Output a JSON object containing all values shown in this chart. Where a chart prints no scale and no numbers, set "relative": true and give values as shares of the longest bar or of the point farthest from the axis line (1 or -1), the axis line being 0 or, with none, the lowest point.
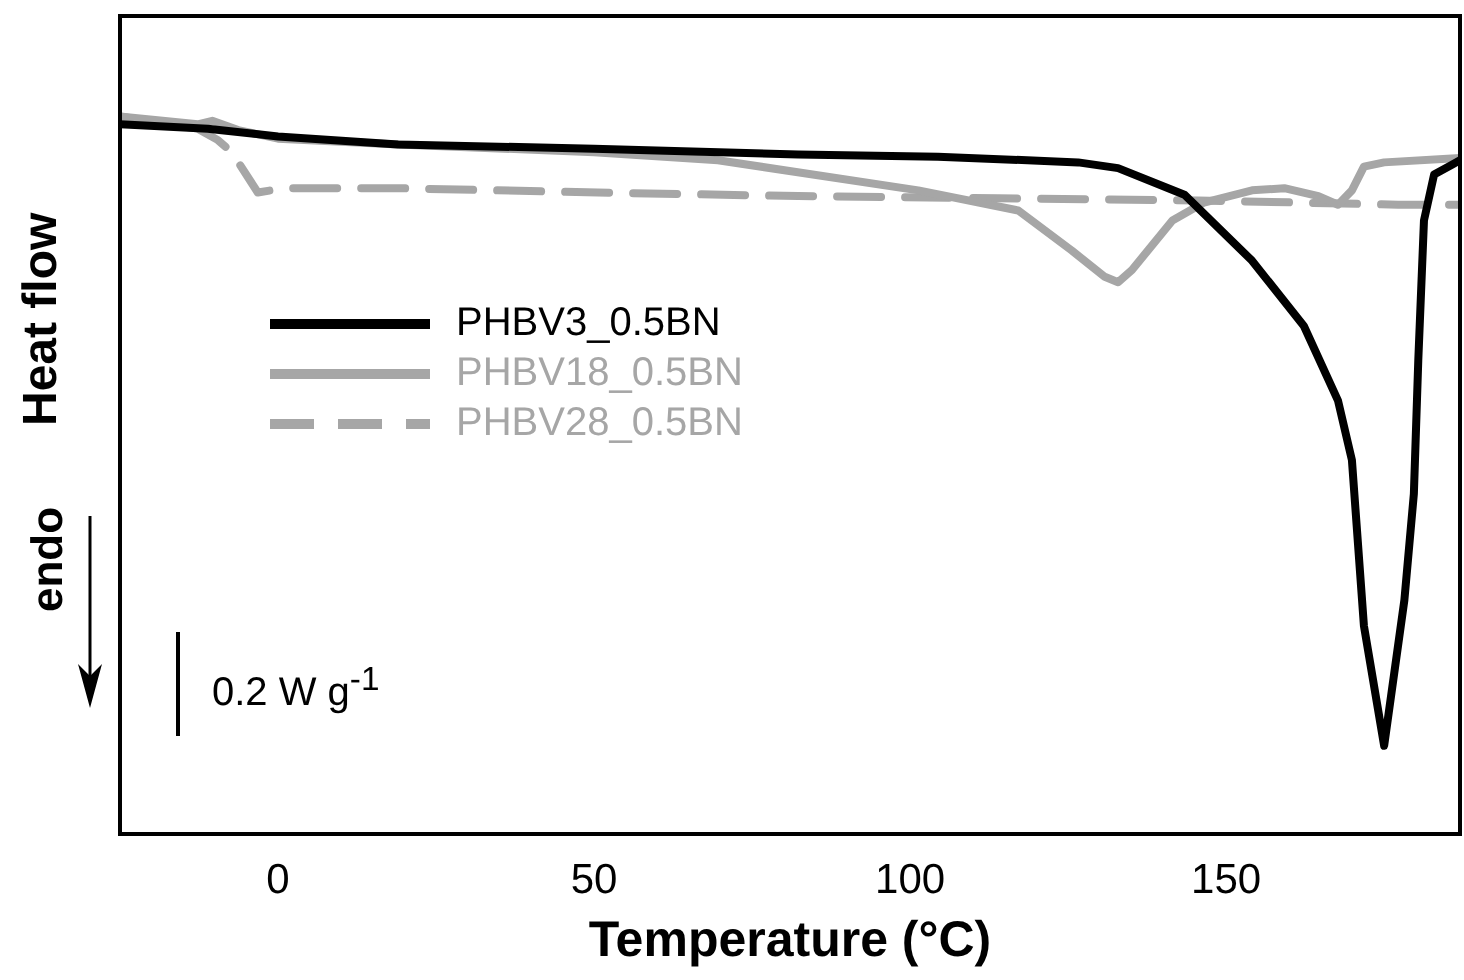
{
  "chart_data": {
    "type": "line",
    "xlabel": "Temperature (°C)",
    "ylabel": "Heat flow",
    "relative": true,
    "xlim": [
      -25,
      187
    ],
    "xticks": [
      0,
      50,
      100,
      150
    ],
    "grid": false,
    "legend": "left",
    "marker": "none",
    "annotations": [
      "endo",
      "0.2 W g$^{-1}$"
    ],
    "series": [
      {
        "name": "PHBV3_0.5BN",
        "color": "#000000",
        "line_style": "solid",
        "x": [
          -25,
          -11.1,
          0,
          19,
          50,
          82.3,
          104.4,
          126.6,
          132.9,
          143.4,
          154.1,
          162.3,
          167.7,
          169.9,
          171.8,
          175,
          178.2,
          179.7,
          180.4,
          181.3,
          182.9,
          185.8,
          187
        ],
        "values": [
          0.989,
          0.983,
          0.972,
          0.961,
          0.955,
          0.947,
          0.944,
          0.936,
          0.928,
          0.891,
          0.799,
          0.708,
          0.604,
          0.521,
          0.29,
          0.123,
          0.326,
          0.474,
          0.66,
          0.855,
          0.919,
          0.933,
          0.939
        ]
      },
      {
        "name": "PHBV18_0.5BN",
        "color": "#a6a6a6",
        "line_style": "solid",
        "x": [
          -25,
          -12.7,
          -10.4,
          -6.3,
          0,
          19,
          50,
          69.6,
          101.3,
          117.1,
          125.6,
          130.7,
          132.9,
          135.1,
          141.5,
          146.5,
          154.1,
          159.2,
          164.6,
          167.7,
          169.9,
          171.8,
          175,
          187
        ],
        "values": [
          1,
          0.989,
          0.994,
          0.981,
          0.969,
          0.961,
          0.95,
          0.939,
          0.897,
          0.869,
          0.813,
          0.777,
          0.769,
          0.786,
          0.855,
          0.88,
          0.897,
          0.9,
          0.889,
          0.877,
          0.897,
          0.93,
          0.936,
          0.942
        ]
      },
      {
        "name": "PHBV28_0.5BN",
        "color": "#a6a6a6",
        "line_style": "dashed",
        "x": [
          -25,
          -12.7,
          -9.5,
          -7.3,
          -3.2,
          0.9,
          19,
          50.6,
          82.3,
          113.9,
          145.6,
          177.2,
          187
        ],
        "values": [
          1,
          0.983,
          0.967,
          0.95,
          0.894,
          0.9,
          0.9,
          0.894,
          0.889,
          0.886,
          0.883,
          0.877,
          0.877
        ]
      }
    ]
  }
}
